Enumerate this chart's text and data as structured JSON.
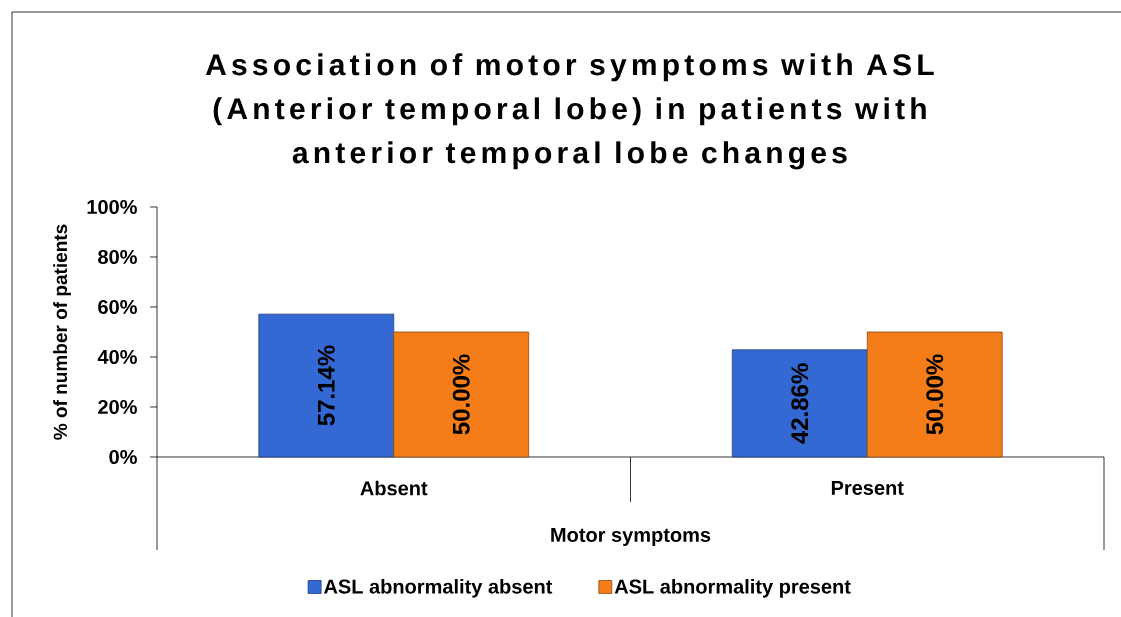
{
  "chart_data": {
    "type": "bar",
    "title": "Association of motor symptoms with ASL (Anterior temporal lobe) in patients with anterior temporal lobe changes",
    "xlabel": "Motor symptoms",
    "ylabel": "% of number of patients",
    "categories": [
      "Absent",
      "Present"
    ],
    "series": [
      {
        "name": "ASL abnormality absent",
        "color": "#3468d2",
        "values": [
          57.14,
          42.86
        ],
        "value_labels": [
          "57.14%",
          "42.86%"
        ]
      },
      {
        "name": "ASL abnormality present",
        "color": "#f47d1a",
        "values": [
          50.0,
          50.0
        ],
        "value_labels": [
          "50.00%",
          "50.00%"
        ]
      }
    ],
    "ylim": [
      0,
      100
    ],
    "yticks": [
      {
        "value": 0,
        "label": "0%"
      },
      {
        "value": 20,
        "label": "20%"
      },
      {
        "value": 40,
        "label": "40%"
      },
      {
        "value": 60,
        "label": "60%"
      },
      {
        "value": 80,
        "label": "80%"
      },
      {
        "value": 100,
        "label": "100%"
      }
    ],
    "legend": "bottom"
  }
}
